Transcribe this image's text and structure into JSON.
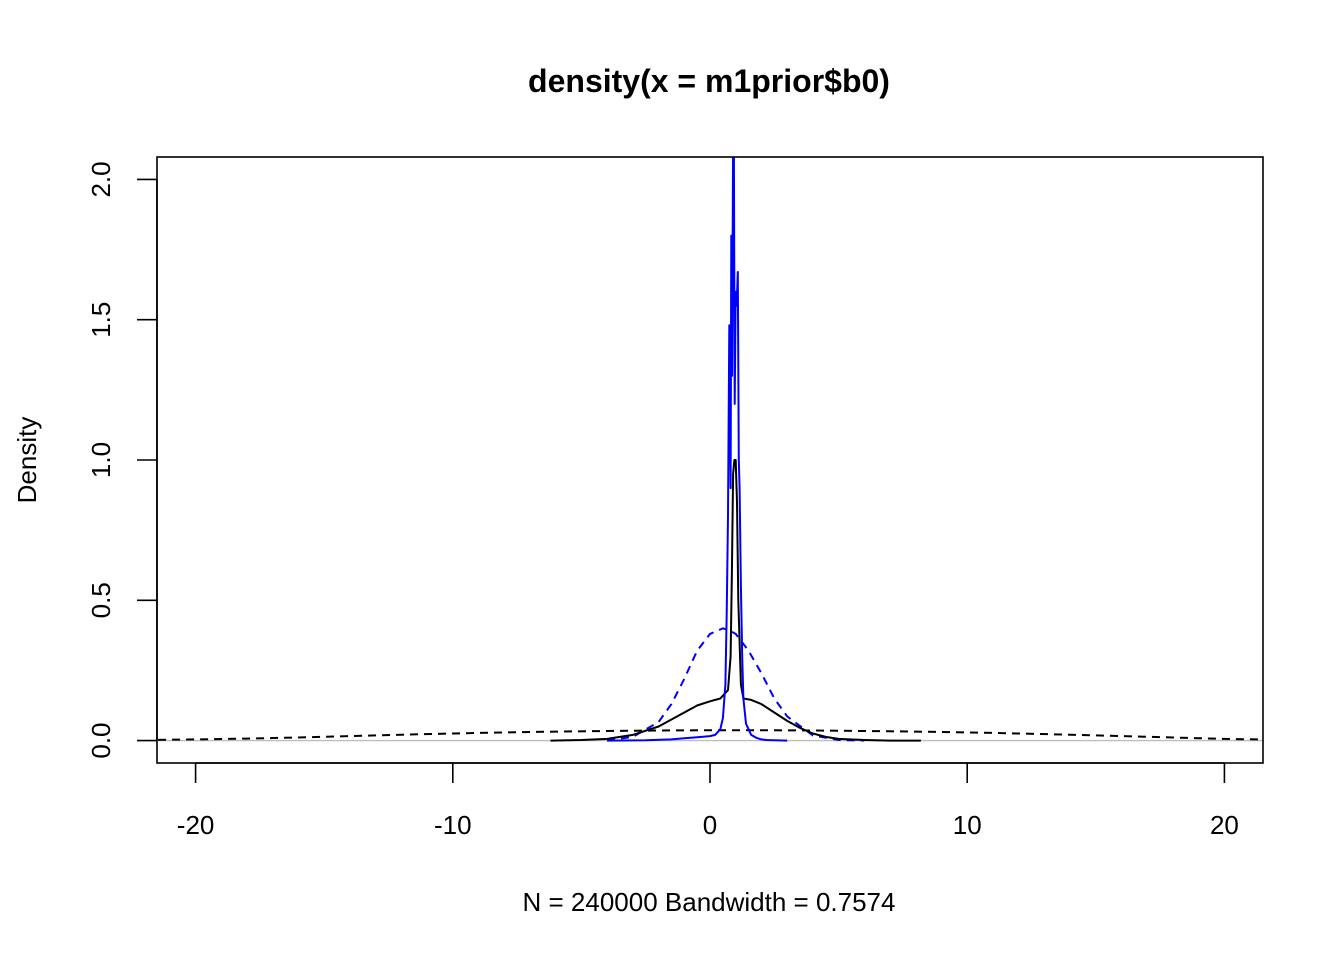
{
  "chart_data": {
    "type": "line",
    "title": "density(x = m1prior$b0)",
    "xlabel": "N = 240000   Bandwidth = 0.7574",
    "ylabel": "Density",
    "xlim": [
      -21.5,
      21.5
    ],
    "ylim": [
      -0.08,
      2.08
    ],
    "x_ticks": [
      -20,
      -10,
      0,
      10,
      20
    ],
    "x_tick_labels": [
      "-20",
      "-10",
      "0",
      "10",
      "20"
    ],
    "y_ticks": [
      0,
      0.5,
      1,
      1.5,
      2
    ],
    "y_tick_labels": [
      "0.0",
      "0.5",
      "1.0",
      "1.5",
      "2.0"
    ],
    "grid": false,
    "zero_line_color": "#bebebe",
    "series": [
      {
        "color": "#000000",
        "dash": "dashed",
        "x": [
          -22,
          -20,
          -18,
          -16,
          -14,
          -12,
          -10,
          -8,
          -6,
          -4,
          -2,
          0,
          1,
          2,
          4,
          6,
          8,
          10,
          12,
          14,
          16,
          18,
          20,
          22
        ],
        "y": [
          0.002,
          0.004,
          0.007,
          0.011,
          0.016,
          0.021,
          0.025,
          0.029,
          0.032,
          0.034,
          0.036,
          0.037,
          0.037,
          0.037,
          0.036,
          0.034,
          0.032,
          0.029,
          0.025,
          0.021,
          0.016,
          0.011,
          0.006,
          0.003
        ]
      },
      {
        "color": "#0000ff",
        "dash": "dashed",
        "x": [
          -4,
          -3,
          -2,
          -1.5,
          -1,
          -0.5,
          0,
          0.5,
          0.8,
          1,
          1.5,
          2,
          2.5,
          3,
          4,
          5,
          6
        ],
        "y": [
          0.001,
          0.013,
          0.066,
          0.13,
          0.22,
          0.32,
          0.38,
          0.4,
          0.39,
          0.38,
          0.32,
          0.24,
          0.15,
          0.086,
          0.018,
          0.002,
          0.0
        ]
      },
      {
        "color": "#000000",
        "dash": "solid",
        "x": [
          -6.2,
          -5,
          -4,
          -3,
          -2,
          -1,
          -0.5,
          0,
          0.4,
          0.7,
          0.8,
          0.85,
          0.9,
          0.95,
          1.0,
          1.05,
          1.1,
          1.2,
          1.3,
          1.6,
          2,
          2.5,
          3,
          3.5,
          4,
          4.5,
          5,
          6,
          7,
          8.2
        ],
        "y": [
          0.0,
          0.002,
          0.006,
          0.02,
          0.05,
          0.1,
          0.125,
          0.14,
          0.15,
          0.18,
          0.3,
          0.6,
          0.95,
          1.0,
          1.0,
          0.85,
          0.5,
          0.2,
          0.15,
          0.145,
          0.13,
          0.1,
          0.07,
          0.045,
          0.025,
          0.013,
          0.006,
          0.002,
          0.0,
          0.0
        ]
      },
      {
        "color": "#0000ff",
        "dash": "solid",
        "x": [
          -4,
          -2.5,
          -1.5,
          -1,
          -0.5,
          0,
          0.2,
          0.4,
          0.5,
          0.6,
          0.65,
          0.7,
          0.75,
          0.8,
          0.83,
          0.86,
          0.9,
          0.93,
          0.96,
          1.0,
          1.04,
          1.08,
          1.12,
          1.15,
          1.2,
          1.25,
          1.3,
          1.4,
          1.6,
          1.8,
          2.0,
          2.2,
          2.5,
          3
        ],
        "y": [
          0.0,
          0.001,
          0.004,
          0.008,
          0.012,
          0.016,
          0.02,
          0.04,
          0.08,
          0.2,
          0.45,
          0.8,
          1.48,
          0.9,
          1.8,
          1.3,
          2.15,
          2.1,
          1.2,
          1.6,
          1.55,
          1.67,
          1.0,
          0.9,
          0.55,
          0.3,
          0.15,
          0.06,
          0.02,
          0.01,
          0.004,
          0.002,
          0.001,
          0.0
        ]
      }
    ]
  }
}
